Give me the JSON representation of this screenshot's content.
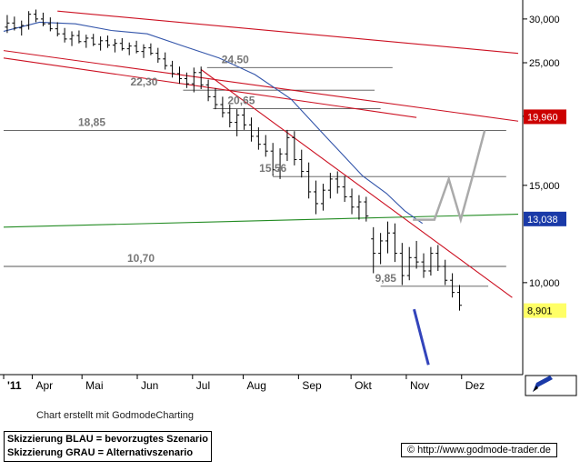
{
  "chart_data": {
    "type": "candlestick",
    "title": "",
    "x_labels": [
      "'11",
      "Apr",
      "Mai",
      "Jun",
      "Jul",
      "Aug",
      "Sep",
      "Okt",
      "Nov",
      "Dez"
    ],
    "y_ticks": [
      "30,000",
      "25,000",
      "20,000",
      "15,000",
      "10,000"
    ],
    "y_tick_values": [
      30,
      25,
      20,
      15,
      10
    ],
    "ylim": [
      7.0,
      31.5
    ],
    "ylog": true,
    "xlim": [
      0,
      43
    ],
    "grid": false,
    "price_badges": [
      {
        "label": "19,960",
        "value": 19.96,
        "color": "#cc0000",
        "text_color": "#ffffff"
      },
      {
        "label": "13,038",
        "value": 13.038,
        "color": "#1a3aa8",
        "text_color": "#ffffff"
      },
      {
        "label": "8,901",
        "value": 8.901,
        "color": "#ffff66",
        "text_color": "#000000"
      }
    ],
    "horizontal_levels": [
      {
        "label": "24,50",
        "value": 24.5,
        "x_start": 17.0,
        "x_end": 32.5
      },
      {
        "label": "22,30",
        "value": 22.3,
        "x_start": 15.0,
        "x_end": 31.0
      },
      {
        "label": "20,65",
        "value": 20.65,
        "x_start": 17.5,
        "x_end": 31.5
      },
      {
        "label": "18,85",
        "value": 18.85,
        "x_start": 0.0,
        "x_end": 42.0
      },
      {
        "label": "15,56",
        "value": 15.56,
        "x_start": 22.5,
        "x_end": 42.0
      },
      {
        "label": "10,70",
        "value": 10.7,
        "x_start": 0.0,
        "x_end": 42.0
      },
      {
        "label": "9,85",
        "value": 9.85,
        "x_start": 31.5,
        "x_end": 40.5
      }
    ],
    "trendlines": [
      {
        "color": "#cc1122",
        "points": [
          [
            4.5,
            31.0
          ],
          [
            43.0,
            26.0
          ]
        ]
      },
      {
        "color": "#cc1122",
        "points": [
          [
            0.0,
            26.3
          ],
          [
            43.0,
            19.6
          ]
        ]
      },
      {
        "color": "#cc1122",
        "points": [
          [
            0.0,
            25.5
          ],
          [
            34.5,
            19.9
          ]
        ]
      },
      {
        "color": "#cc1122",
        "points": [
          [
            16.5,
            24.3
          ],
          [
            42.5,
            9.4
          ]
        ]
      },
      {
        "color": "#228b22",
        "points": [
          [
            0.0,
            12.6
          ],
          [
            43.0,
            13.3
          ]
        ]
      }
    ],
    "moving_average": {
      "color": "#3355aa",
      "points": [
        [
          0,
          28.5
        ],
        [
          3,
          29.6
        ],
        [
          6,
          29.4
        ],
        [
          9,
          28.6
        ],
        [
          12,
          28.2
        ],
        [
          15,
          26.8
        ],
        [
          18,
          25.5
        ],
        [
          21,
          23.8
        ],
        [
          24,
          21.5
        ],
        [
          27,
          18.3
        ],
        [
          30,
          15.6
        ],
        [
          32,
          14.5
        ],
        [
          33.5,
          13.5
        ],
        [
          35,
          12.8
        ]
      ]
    },
    "scenario_blue": {
      "color": "#3344bb",
      "points": [
        [
          34.3,
          8.95
        ],
        [
          35.5,
          7.1
        ]
      ]
    },
    "scenario_gray": {
      "color": "#aaaaaa",
      "points": [
        [
          34.2,
          13.0
        ],
        [
          36.0,
          13.0
        ],
        [
          37.2,
          15.4
        ],
        [
          38.2,
          13.0
        ],
        [
          39.2,
          15.6
        ],
        [
          40.2,
          18.85
        ]
      ]
    },
    "candles": [
      [
        0.3,
        29.0,
        30.5,
        28.3,
        29.5
      ],
      [
        0.9,
        29.5,
        30.3,
        28.6,
        28.9
      ],
      [
        1.5,
        28.9,
        29.8,
        28.0,
        29.2
      ],
      [
        2.1,
        29.2,
        31.0,
        28.7,
        30.6
      ],
      [
        2.7,
        30.6,
        31.2,
        29.6,
        30.0
      ],
      [
        3.3,
        30.0,
        30.8,
        29.1,
        29.4
      ],
      [
        3.9,
        29.4,
        30.2,
        28.5,
        28.8
      ],
      [
        4.5,
        28.8,
        29.6,
        27.9,
        28.2
      ],
      [
        5.1,
        28.2,
        28.9,
        27.2,
        27.6
      ],
      [
        5.7,
        27.6,
        28.5,
        26.8,
        28.0
      ],
      [
        6.3,
        28.0,
        28.6,
        27.1,
        27.3
      ],
      [
        6.9,
        27.3,
        28.1,
        26.6,
        27.7
      ],
      [
        7.5,
        27.7,
        28.2,
        26.8,
        27.0
      ],
      [
        8.1,
        27.0,
        27.9,
        26.3,
        27.4
      ],
      [
        8.7,
        27.4,
        28.0,
        26.6,
        26.9
      ],
      [
        9.3,
        26.9,
        27.6,
        26.1,
        27.1
      ],
      [
        9.9,
        27.1,
        27.7,
        26.3,
        26.5
      ],
      [
        10.5,
        26.5,
        27.2,
        25.8,
        26.8
      ],
      [
        11.1,
        26.8,
        27.4,
        26.0,
        26.2
      ],
      [
        11.7,
        26.2,
        27.0,
        25.5,
        26.6
      ],
      [
        12.3,
        26.6,
        27.1,
        25.8,
        26.0
      ],
      [
        12.9,
        26.0,
        26.6,
        25.0,
        25.4
      ],
      [
        13.5,
        25.4,
        26.1,
        24.3,
        24.7
      ],
      [
        14.1,
        24.7,
        25.2,
        23.5,
        23.9
      ],
      [
        14.7,
        23.9,
        24.6,
        22.9,
        23.4
      ],
      [
        15.3,
        23.4,
        24.0,
        22.5,
        22.9
      ],
      [
        15.9,
        22.9,
        24.5,
        22.1,
        24.0
      ],
      [
        16.5,
        24.0,
        24.6,
        22.4,
        22.8
      ],
      [
        17.1,
        22.8,
        23.3,
        21.3,
        21.7
      ],
      [
        17.7,
        21.7,
        22.5,
        20.6,
        21.0
      ],
      [
        18.3,
        21.0,
        21.7,
        19.9,
        20.3
      ],
      [
        18.9,
        20.3,
        21.0,
        19.1,
        19.5
      ],
      [
        19.5,
        19.5,
        20.6,
        18.4,
        20.1
      ],
      [
        20.1,
        20.1,
        20.7,
        18.9,
        19.3
      ],
      [
        20.7,
        19.3,
        19.9,
        18.0,
        18.4
      ],
      [
        21.3,
        18.4,
        19.1,
        17.4,
        17.8
      ],
      [
        21.9,
        17.8,
        18.5,
        16.9,
        17.3
      ],
      [
        22.5,
        17.3,
        17.9,
        15.6,
        16.0
      ],
      [
        23.1,
        16.0,
        17.5,
        15.4,
        17.1
      ],
      [
        23.7,
        17.1,
        18.9,
        16.6,
        18.3
      ],
      [
        24.3,
        18.3,
        18.8,
        16.3,
        16.7
      ],
      [
        24.9,
        16.7,
        17.4,
        15.5,
        15.9
      ],
      [
        25.5,
        15.9,
        16.5,
        14.2,
        14.6
      ],
      [
        26.1,
        14.6,
        15.3,
        13.3,
        13.9
      ],
      [
        26.7,
        13.9,
        15.1,
        13.5,
        14.7
      ],
      [
        27.3,
        14.7,
        15.8,
        14.2,
        15.4
      ],
      [
        27.9,
        15.4,
        15.9,
        14.5,
        14.9
      ],
      [
        28.5,
        14.9,
        15.6,
        14.0,
        14.3
      ],
      [
        29.1,
        14.3,
        14.8,
        13.3,
        13.7
      ],
      [
        29.7,
        13.7,
        14.4,
        13.0,
        14.0
      ],
      [
        30.3,
        14.0,
        14.3,
        12.9,
        13.2
      ],
      [
        30.9,
        12.0,
        12.6,
        10.4,
        11.3
      ],
      [
        31.5,
        11.3,
        12.3,
        10.8,
        11.9
      ],
      [
        32.1,
        11.9,
        12.9,
        11.3,
        12.3
      ],
      [
        32.7,
        12.3,
        12.8,
        10.9,
        11.3
      ],
      [
        33.3,
        11.3,
        11.8,
        9.9,
        10.3
      ],
      [
        33.9,
        10.3,
        11.6,
        10.1,
        11.1
      ],
      [
        34.5,
        11.1,
        11.9,
        10.6,
        10.9
      ],
      [
        35.1,
        10.9,
        11.3,
        10.2,
        10.5
      ],
      [
        35.7,
        10.5,
        11.6,
        10.3,
        11.3
      ],
      [
        36.3,
        11.3,
        11.7,
        10.5,
        10.7
      ],
      [
        36.9,
        10.7,
        11.0,
        9.9,
        10.1
      ],
      [
        37.5,
        10.1,
        10.4,
        9.4,
        9.6
      ],
      [
        38.1,
        9.6,
        9.9,
        8.9,
        9.1
      ]
    ]
  },
  "footer": {
    "credit": "Chart erstellt mit GodmodeCharting",
    "legend_line1": "Skizzierung BLAU = bevorzugtes Szenario",
    "legend_line2": "Skizzierung GRAU = Alternativszenario",
    "copyright_symbol": "©",
    "url": "http://www.godmode-trader.de"
  },
  "icons": {
    "corner": "pencil-icon"
  }
}
